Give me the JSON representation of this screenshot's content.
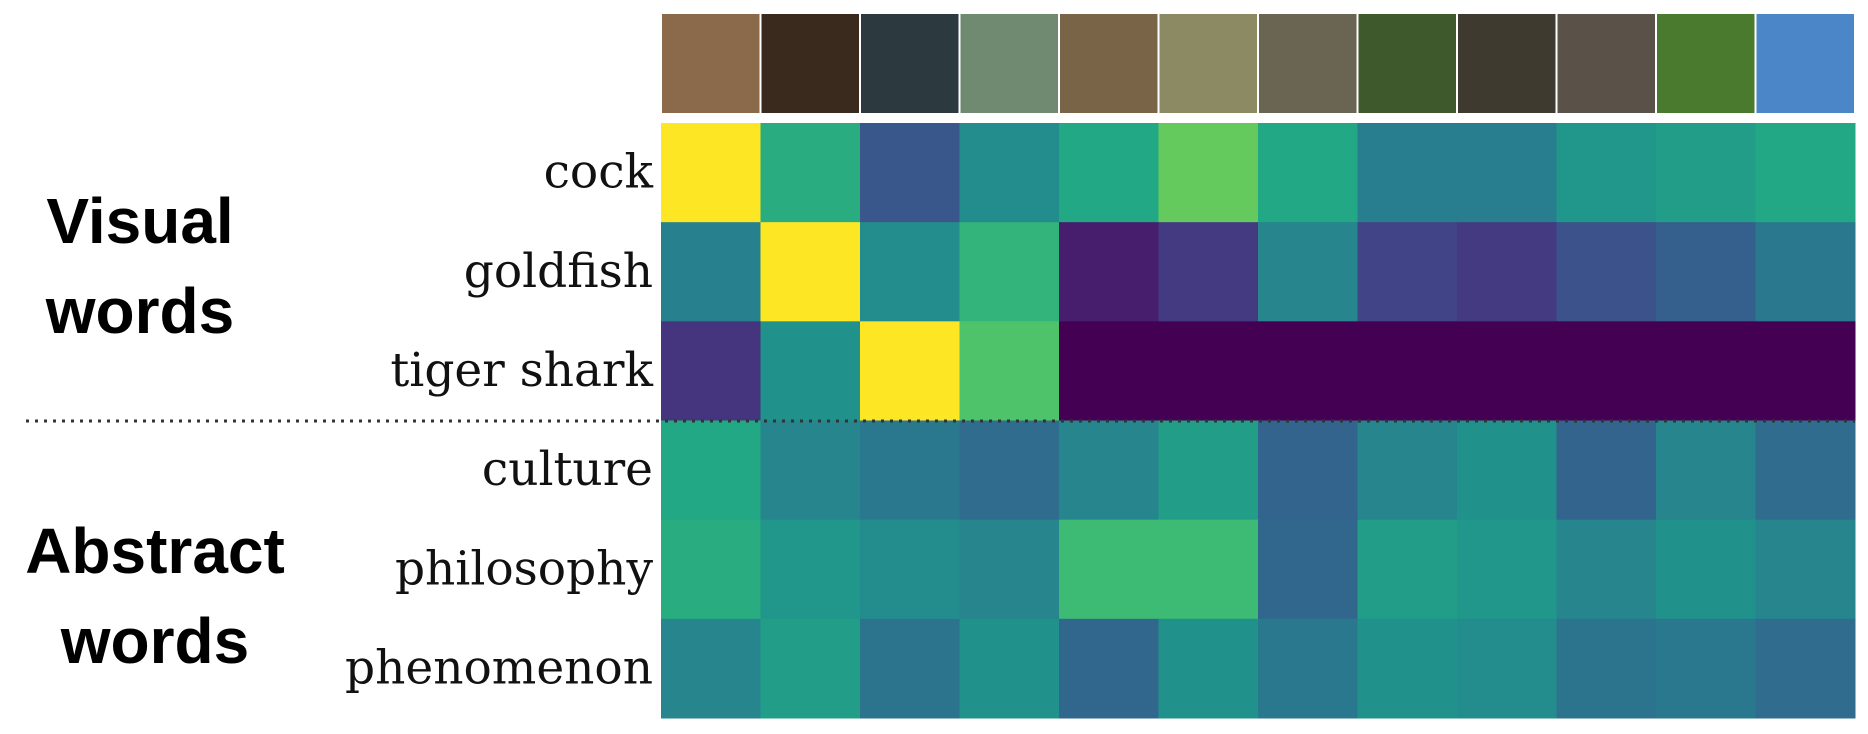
{
  "chart_data": {
    "type": "heatmap",
    "rows": [
      "cock",
      "goldfish",
      "tiger shark",
      "culture",
      "philosophy",
      "phenomenon"
    ],
    "group_labels": [
      [
        "Visual",
        "words"
      ],
      [
        "Abstract",
        "words"
      ]
    ],
    "colormap": "viridis",
    "clim": [
      0,
      1
    ],
    "values": [
      [
        1.0,
        0.62,
        0.27,
        0.48,
        0.6,
        0.76,
        0.6,
        0.42,
        0.42,
        0.52,
        0.55,
        0.6
      ],
      [
        0.43,
        1.0,
        0.48,
        0.65,
        0.08,
        0.17,
        0.45,
        0.2,
        0.17,
        0.25,
        0.3,
        0.4
      ],
      [
        0.15,
        0.5,
        1.0,
        0.72,
        0.0,
        0.0,
        0.0,
        0.0,
        0.0,
        0.0,
        0.0,
        0.0
      ],
      [
        0.6,
        0.45,
        0.4,
        0.35,
        0.45,
        0.55,
        0.32,
        0.45,
        0.5,
        0.32,
        0.45,
        0.35
      ],
      [
        0.62,
        0.52,
        0.48,
        0.45,
        0.68,
        0.68,
        0.33,
        0.55,
        0.52,
        0.45,
        0.5,
        0.45
      ],
      [
        0.45,
        0.55,
        0.38,
        0.5,
        0.33,
        0.5,
        0.4,
        0.5,
        0.48,
        0.38,
        0.4,
        0.35
      ]
    ]
  }
}
